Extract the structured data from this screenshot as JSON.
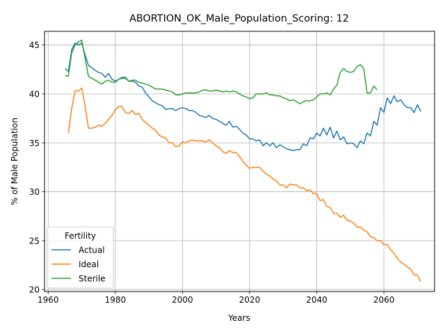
{
  "chart_data": {
    "type": "line",
    "title": "ABORTION_OK_Male_Population_Scoring: 12",
    "xlabel": "Years",
    "ylabel": "% of Male Population",
    "xlim": [
      1958.9,
      2075.1
    ],
    "ylim": [
      19.8,
      46.4
    ],
    "xticks": [
      1960,
      1980,
      2000,
      2020,
      2040,
      2060
    ],
    "yticks": [
      20,
      25,
      30,
      35,
      40,
      45
    ],
    "grid": true,
    "legend": {
      "title": "Fertility",
      "placement": "lower-left"
    },
    "series": [
      {
        "name": "Actual",
        "color": "#1f77b4",
        "points": [
          [
            1965,
            42.6
          ],
          [
            1966,
            42.3
          ],
          [
            1967,
            44.5
          ],
          [
            1968,
            45.2
          ],
          [
            1969,
            45.0
          ],
          [
            1970,
            45.2
          ],
          [
            1971,
            44.0
          ],
          [
            1972,
            42.9
          ],
          [
            1973,
            42.7
          ],
          [
            1974,
            42.4
          ],
          [
            1975,
            42.2
          ],
          [
            1976,
            42.1
          ],
          [
            1977,
            41.7
          ],
          [
            1978,
            42.1
          ],
          [
            1979,
            41.5
          ],
          [
            1980,
            41.3
          ],
          [
            1981,
            41.5
          ],
          [
            1982,
            41.7
          ],
          [
            1983,
            41.7
          ],
          [
            1984,
            41.3
          ],
          [
            1985,
            41.3
          ],
          [
            1986,
            41.2
          ],
          [
            1987,
            40.8
          ],
          [
            1988,
            40.7
          ],
          [
            1989,
            40.1
          ],
          [
            1990,
            39.7
          ],
          [
            1991,
            39.3
          ],
          [
            1992,
            39.1
          ],
          [
            1993,
            38.9
          ],
          [
            1994,
            38.8
          ],
          [
            1995,
            38.4
          ],
          [
            1996,
            38.5
          ],
          [
            1997,
            38.5
          ],
          [
            1998,
            38.3
          ],
          [
            1999,
            38.5
          ],
          [
            2000,
            38.6
          ],
          [
            2001,
            38.5
          ],
          [
            2002,
            38.3
          ],
          [
            2003,
            38.3
          ],
          [
            2004,
            38.1
          ],
          [
            2005,
            37.8
          ],
          [
            2006,
            37.7
          ],
          [
            2007,
            37.6
          ],
          [
            2008,
            37.8
          ],
          [
            2009,
            37.5
          ],
          [
            2010,
            37.4
          ],
          [
            2011,
            37.2
          ],
          [
            2012,
            37.0
          ],
          [
            2013,
            36.8
          ],
          [
            2014,
            37.2
          ],
          [
            2015,
            36.6
          ],
          [
            2016,
            36.7
          ],
          [
            2017,
            36.4
          ],
          [
            2018,
            36.0
          ],
          [
            2019,
            35.8
          ],
          [
            2020,
            35.4
          ],
          [
            2021,
            35.4
          ],
          [
            2022,
            35.2
          ],
          [
            2023,
            35.3
          ],
          [
            2024,
            34.7
          ],
          [
            2025,
            35.0
          ],
          [
            2026,
            34.7
          ],
          [
            2027,
            35.0
          ],
          [
            2028,
            34.5
          ],
          [
            2029,
            34.8
          ],
          [
            2030,
            34.6
          ],
          [
            2031,
            34.4
          ],
          [
            2032,
            34.3
          ],
          [
            2033,
            34.2
          ],
          [
            2034,
            34.3
          ],
          [
            2035,
            34.3
          ],
          [
            2036,
            34.9
          ],
          [
            2037,
            34.7
          ],
          [
            2038,
            35.5
          ],
          [
            2039,
            35.4
          ],
          [
            2040,
            36.0
          ],
          [
            2041,
            35.7
          ],
          [
            2042,
            36.5
          ],
          [
            2043,
            35.8
          ],
          [
            2044,
            36.6
          ],
          [
            2045,
            35.5
          ],
          [
            2046,
            36.2
          ],
          [
            2047,
            35.3
          ],
          [
            2048,
            35.6
          ],
          [
            2049,
            34.9
          ],
          [
            2050,
            35.0
          ],
          [
            2051,
            34.9
          ],
          [
            2052,
            34.5
          ],
          [
            2053,
            35.2
          ],
          [
            2054,
            34.9
          ],
          [
            2055,
            36.0
          ],
          [
            2056,
            35.7
          ],
          [
            2057,
            37.2
          ],
          [
            2058,
            36.8
          ],
          [
            2059,
            38.6
          ],
          [
            2060,
            38.1
          ],
          [
            2061,
            39.6
          ],
          [
            2062,
            39.0
          ],
          [
            2063,
            39.8
          ],
          [
            2064,
            39.2
          ],
          [
            2065,
            39.4
          ],
          [
            2066,
            38.9
          ],
          [
            2067,
            38.6
          ],
          [
            2068,
            38.6
          ],
          [
            2069,
            38.1
          ],
          [
            2070,
            38.9
          ],
          [
            2071,
            38.2
          ]
        ]
      },
      {
        "name": "Ideal",
        "color": "#ff7f0e",
        "points": [
          [
            1966,
            36.0
          ],
          [
            1967,
            38.5
          ],
          [
            1968,
            40.3
          ],
          [
            1969,
            40.3
          ],
          [
            1970,
            40.6
          ],
          [
            1971,
            38.8
          ],
          [
            1972,
            36.5
          ],
          [
            1973,
            36.5
          ],
          [
            1974,
            36.6
          ],
          [
            1975,
            36.8
          ],
          [
            1976,
            36.7
          ],
          [
            1977,
            37.0
          ],
          [
            1978,
            37.4
          ],
          [
            1979,
            37.8
          ],
          [
            1980,
            38.4
          ],
          [
            1981,
            38.7
          ],
          [
            1982,
            38.7
          ],
          [
            1983,
            38.1
          ],
          [
            1984,
            38.0
          ],
          [
            1985,
            38.3
          ],
          [
            1986,
            37.9
          ],
          [
            1987,
            38.0
          ],
          [
            1988,
            37.4
          ],
          [
            1989,
            37.1
          ],
          [
            1990,
            36.8
          ],
          [
            1991,
            36.5
          ],
          [
            1992,
            36.3
          ],
          [
            1993,
            35.8
          ],
          [
            1994,
            35.6
          ],
          [
            1995,
            35.5
          ],
          [
            1996,
            35.0
          ],
          [
            1997,
            35.0
          ],
          [
            1998,
            34.6
          ],
          [
            1999,
            34.7
          ],
          [
            2000,
            35.1
          ],
          [
            2001,
            35.0
          ],
          [
            2002,
            35.2
          ],
          [
            2003,
            35.3
          ],
          [
            2004,
            35.2
          ],
          [
            2005,
            35.2
          ],
          [
            2006,
            35.2
          ],
          [
            2007,
            35.1
          ],
          [
            2008,
            35.3
          ],
          [
            2009,
            35.0
          ],
          [
            2010,
            34.7
          ],
          [
            2011,
            34.5
          ],
          [
            2012,
            34.1
          ],
          [
            2013,
            33.9
          ],
          [
            2014,
            34.2
          ],
          [
            2015,
            34.0
          ],
          [
            2016,
            34.0
          ],
          [
            2017,
            33.6
          ],
          [
            2018,
            33.1
          ],
          [
            2019,
            32.7
          ],
          [
            2020,
            32.4
          ],
          [
            2021,
            32.5
          ],
          [
            2022,
            32.5
          ],
          [
            2023,
            32.5
          ],
          [
            2024,
            32.1
          ],
          [
            2025,
            31.8
          ],
          [
            2026,
            31.6
          ],
          [
            2027,
            31.3
          ],
          [
            2028,
            31.1
          ],
          [
            2029,
            30.7
          ],
          [
            2030,
            30.7
          ],
          [
            2031,
            30.4
          ],
          [
            2032,
            30.8
          ],
          [
            2033,
            30.7
          ],
          [
            2034,
            30.7
          ],
          [
            2035,
            30.4
          ],
          [
            2036,
            30.4
          ],
          [
            2037,
            30.1
          ],
          [
            2038,
            30.2
          ],
          [
            2039,
            29.8
          ],
          [
            2040,
            29.8
          ],
          [
            2041,
            29.1
          ],
          [
            2042,
            29.2
          ],
          [
            2043,
            28.5
          ],
          [
            2044,
            28.4
          ],
          [
            2045,
            27.8
          ],
          [
            2046,
            27.8
          ],
          [
            2047,
            27.4
          ],
          [
            2048,
            27.6
          ],
          [
            2049,
            27.1
          ],
          [
            2050,
            27.0
          ],
          [
            2051,
            26.8
          ],
          [
            2052,
            26.4
          ],
          [
            2053,
            26.4
          ],
          [
            2054,
            26.1
          ],
          [
            2055,
            25.9
          ],
          [
            2056,
            25.4
          ],
          [
            2057,
            25.3
          ],
          [
            2058,
            25.0
          ],
          [
            2059,
            25.0
          ],
          [
            2060,
            24.6
          ],
          [
            2061,
            24.6
          ],
          [
            2062,
            24.1
          ],
          [
            2063,
            23.7
          ],
          [
            2064,
            23.2
          ],
          [
            2065,
            22.8
          ],
          [
            2066,
            22.6
          ],
          [
            2067,
            22.3
          ],
          [
            2068,
            22.1
          ],
          [
            2069,
            21.5
          ],
          [
            2070,
            21.5
          ],
          [
            2071,
            20.8
          ]
        ]
      },
      {
        "name": "Sterile",
        "color": "#2ca02c",
        "points": [
          [
            1965,
            41.9
          ],
          [
            1966,
            41.8
          ],
          [
            1967,
            44.2
          ],
          [
            1968,
            45.0
          ],
          [
            1969,
            45.3
          ],
          [
            1970,
            45.5
          ],
          [
            1971,
            43.6
          ],
          [
            1972,
            41.8
          ],
          [
            1973,
            41.6
          ],
          [
            1974,
            41.4
          ],
          [
            1975,
            41.2
          ],
          [
            1976,
            41.0
          ],
          [
            1977,
            41.3
          ],
          [
            1978,
            41.4
          ],
          [
            1979,
            41.2
          ],
          [
            1980,
            41.2
          ],
          [
            1981,
            41.5
          ],
          [
            1982,
            41.6
          ],
          [
            1983,
            41.6
          ],
          [
            1984,
            41.3
          ],
          [
            1985,
            41.4
          ],
          [
            1986,
            41.4
          ],
          [
            1987,
            41.2
          ],
          [
            1988,
            41.1
          ],
          [
            1989,
            41.0
          ],
          [
            1990,
            40.9
          ],
          [
            1991,
            40.7
          ],
          [
            1992,
            40.5
          ],
          [
            1993,
            40.5
          ],
          [
            1994,
            40.5
          ],
          [
            1995,
            40.4
          ],
          [
            1996,
            40.3
          ],
          [
            1997,
            40.2
          ],
          [
            1998,
            39.9
          ],
          [
            1999,
            39.9
          ],
          [
            2000,
            40.0
          ],
          [
            2001,
            40.1
          ],
          [
            2002,
            40.1
          ],
          [
            2003,
            40.1
          ],
          [
            2004,
            40.1
          ],
          [
            2005,
            40.2
          ],
          [
            2006,
            40.4
          ],
          [
            2007,
            40.4
          ],
          [
            2008,
            40.3
          ],
          [
            2009,
            40.3
          ],
          [
            2010,
            40.4
          ],
          [
            2011,
            40.3
          ],
          [
            2012,
            40.2
          ],
          [
            2013,
            40.3
          ],
          [
            2014,
            40.2
          ],
          [
            2015,
            40.3
          ],
          [
            2016,
            40.2
          ],
          [
            2017,
            40.0
          ],
          [
            2018,
            39.8
          ],
          [
            2019,
            39.7
          ],
          [
            2020,
            39.5
          ],
          [
            2021,
            39.6
          ],
          [
            2022,
            40.0
          ],
          [
            2023,
            40.0
          ],
          [
            2024,
            40.0
          ],
          [
            2025,
            40.1
          ],
          [
            2026,
            39.9
          ],
          [
            2027,
            39.9
          ],
          [
            2028,
            39.8
          ],
          [
            2029,
            39.8
          ],
          [
            2030,
            39.6
          ],
          [
            2031,
            39.5
          ],
          [
            2032,
            39.3
          ],
          [
            2033,
            39.4
          ],
          [
            2034,
            39.2
          ],
          [
            2035,
            39.0
          ],
          [
            2036,
            39.2
          ],
          [
            2037,
            39.3
          ],
          [
            2038,
            39.3
          ],
          [
            2039,
            39.4
          ],
          [
            2040,
            39.7
          ],
          [
            2041,
            40.0
          ],
          [
            2042,
            40.0
          ],
          [
            2043,
            40.1
          ],
          [
            2044,
            39.9
          ],
          [
            2045,
            40.5
          ],
          [
            2046,
            40.9
          ],
          [
            2047,
            42.2
          ],
          [
            2048,
            42.6
          ],
          [
            2049,
            42.3
          ],
          [
            2050,
            42.2
          ],
          [
            2051,
            42.3
          ],
          [
            2052,
            42.8
          ],
          [
            2053,
            43.0
          ],
          [
            2054,
            42.6
          ],
          [
            2055,
            40.1
          ],
          [
            2056,
            40.1
          ],
          [
            2057,
            40.8
          ],
          [
            2058,
            40.4
          ]
        ]
      }
    ]
  }
}
